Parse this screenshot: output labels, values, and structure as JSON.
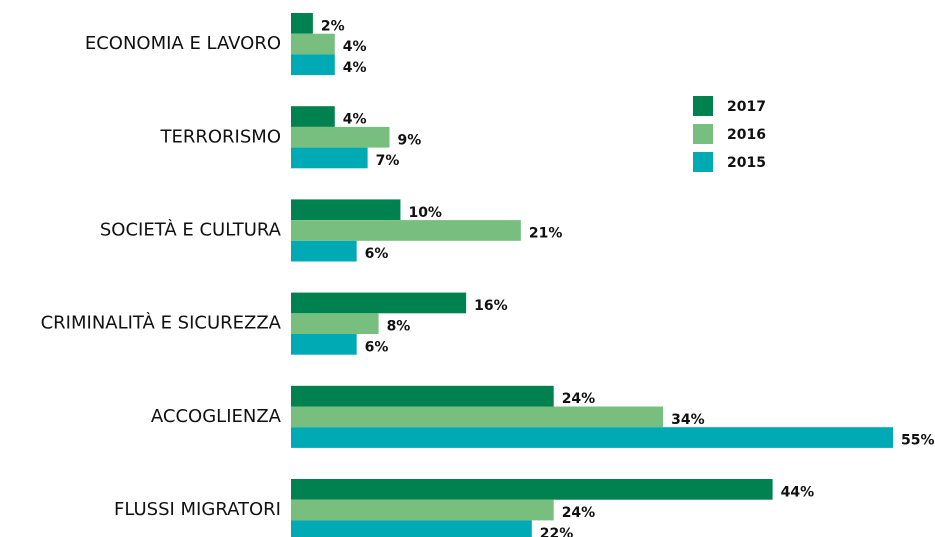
{
  "chart_data": {
    "type": "bar",
    "orientation": "horizontal",
    "categories": [
      "ECONOMIA E LAVORO",
      "TERRORISMO",
      "SOCIETÀ E CULTURA",
      "CRIMINALITÀ E SICUREZZA",
      "ACCOGLIENZA",
      "FLUSSI MIGRATORI"
    ],
    "series": [
      {
        "name": "2017",
        "color": "#008150",
        "values": [
          2,
          4,
          10,
          16,
          24,
          44
        ],
        "value_labels": [
          "2%",
          "4%",
          "10%",
          "16%",
          "24%",
          "44%"
        ]
      },
      {
        "name": "2016",
        "color": "#78be7f",
        "values": [
          4,
          9,
          21,
          8,
          34,
          24
        ],
        "value_labels": [
          "4%",
          "9%",
          "21%",
          "8%",
          "34%",
          "24%"
        ]
      },
      {
        "name": "2015",
        "color": "#00aab5",
        "values": [
          4,
          7,
          6,
          6,
          55,
          22
        ],
        "value_labels": [
          "4%",
          "7%",
          "6%",
          "6%",
          "55%",
          "22%"
        ]
      }
    ]
  }
}
